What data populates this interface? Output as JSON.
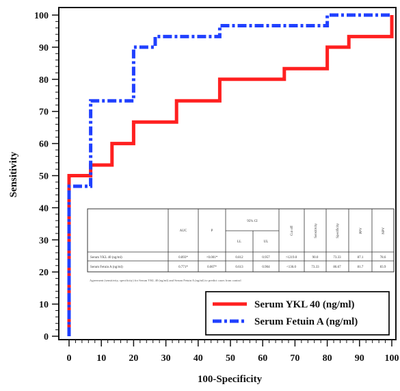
{
  "chart_data": {
    "type": "line",
    "title": "",
    "xlabel": "100-Specificity",
    "ylabel": "Sensitivity",
    "xlim": [
      0,
      100
    ],
    "ylim": [
      0,
      100
    ],
    "x_ticks": [
      "0",
      "10",
      "20",
      "30",
      "40",
      "50",
      "60",
      "70",
      "80",
      "90",
      "100"
    ],
    "y_ticks": [
      "0",
      "10",
      "20",
      "30",
      "40",
      "50",
      "60",
      "70",
      "80",
      "90",
      "100"
    ],
    "legend_position": "bottom-right",
    "series": [
      {
        "name": "Serum YKL 40 (ng/ml)",
        "color": "#ff2020",
        "style": "solid",
        "step": true,
        "x": [
          0,
          0,
          6.7,
          6.7,
          13.3,
          13.3,
          20,
          20,
          33.3,
          33.3,
          46.7,
          46.7,
          66.7,
          66.7,
          80,
          80,
          86.7,
          86.7,
          100,
          100
        ],
        "y": [
          0,
          50,
          50,
          53.3,
          53.3,
          60,
          60,
          66.7,
          66.7,
          73.3,
          73.3,
          80,
          80,
          83.3,
          83.3,
          90,
          90,
          93.3,
          93.3,
          100
        ]
      },
      {
        "name": "Serum Fetuin A (ng/ml)",
        "color": "#2040ff",
        "style": "dash-dot",
        "step": true,
        "x": [
          0,
          0,
          6.7,
          6.7,
          20,
          20,
          26.7,
          26.7,
          46.7,
          46.7,
          80,
          80,
          100,
          100
        ],
        "y": [
          0,
          46.7,
          46.7,
          73.3,
          73.3,
          90,
          90,
          93.3,
          93.3,
          96.7,
          96.7,
          100,
          100,
          100
        ]
      }
    ]
  },
  "table": {
    "headers": [
      "",
      "AUC",
      "P",
      "95% CI",
      "Cut off",
      "Sensitivity",
      "Specificity",
      "PPV",
      "NPV"
    ],
    "ci_subheaders": [
      "LL",
      "UL"
    ],
    "rows": [
      [
        "Serum YKL 40 (ng/ml)",
        "0.893*",
        "<0.001*",
        "0.812",
        "0.957",
        ">1219.0",
        "90.0",
        "73.33",
        "87.1",
        "78.6"
      ],
      [
        "Serum Fetuin A (ng/ml)",
        "0.771*",
        "0.007*",
        "0.613",
        "0.904",
        "<136.0",
        "73.33",
        "86.67",
        "81.7",
        "83.9"
      ]
    ],
    "note": "Agreement (sensitivity, specificity) for Serum YKL 40 (ng/ml) and Serum Fetuin A (ng/ml) to predict cases from control"
  }
}
